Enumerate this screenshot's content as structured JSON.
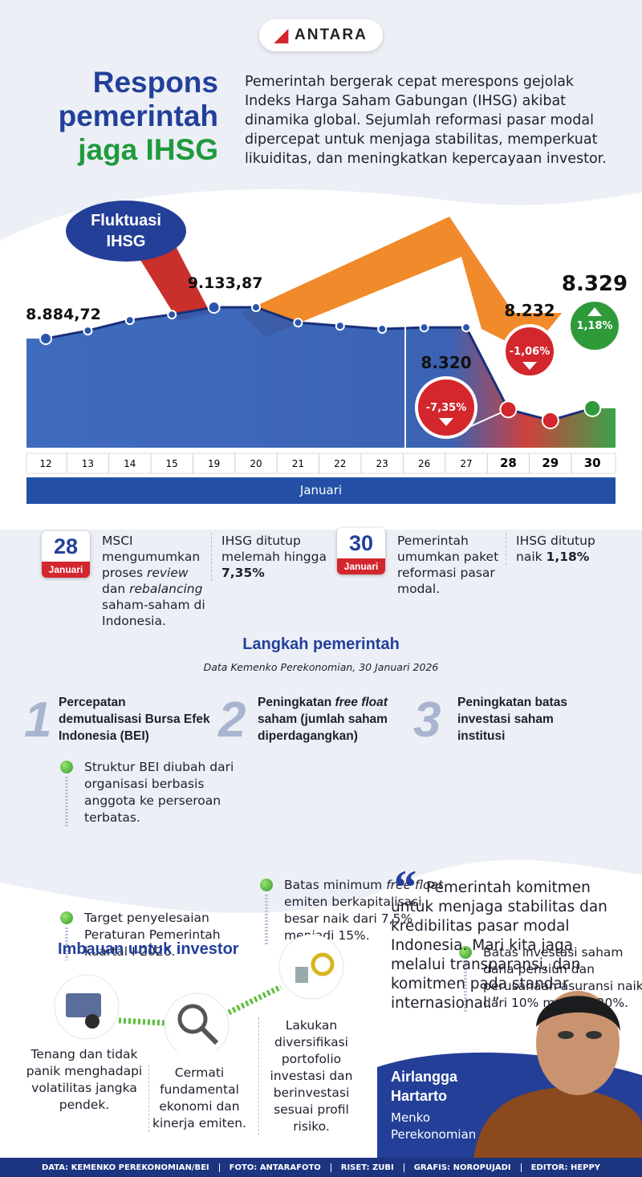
{
  "header": {
    "logo": "ANTARA",
    "title": [
      "Respons",
      "pemerintah",
      "jaga IHSG"
    ],
    "intro": "Pemerintah bergerak cepat merespons gejolak Indeks Harga Saham Gabungan (IHSG) akibat dinamika global. Sejumlah reformasi pasar modal dipercepat untuk menjaga stabilitas, memperkuat likuiditas, dan meningkatkan kepercayaan investor."
  },
  "chart_data": {
    "type": "line",
    "title": "Fluktuasi IHSG",
    "x_label": "Januari",
    "categories": [
      "12",
      "13",
      "14",
      "15",
      "19",
      "20",
      "21",
      "22",
      "23",
      "26",
      "27",
      "28",
      "29",
      "30"
    ],
    "values": [
      8884.72,
      8948,
      9031,
      9076,
      9133.87,
      9134,
      9012,
      8986,
      8961,
      8973,
      8973,
      8320,
      8232,
      8329
    ],
    "value_labels": [
      "8.884,72",
      null,
      null,
      null,
      "9.133,87",
      null,
      null,
      null,
      null,
      null,
      null,
      "8.320",
      "8.232",
      "8.329"
    ],
    "changes": [
      null,
      null,
      null,
      null,
      null,
      null,
      null,
      null,
      null,
      null,
      null,
      -7.35,
      -1.06,
      1.18
    ],
    "change_labels": [
      null,
      null,
      null,
      null,
      null,
      null,
      null,
      null,
      null,
      null,
      null,
      "-7,35%",
      "-1,06%",
      "1,18%"
    ],
    "color": "#2a55ad",
    "down_color": "#d3262d",
    "up_color": "#2f9a3a"
  },
  "events": [
    {
      "day": "28",
      "month": "Januari",
      "text": [
        "MSCI mengumumkan proses ",
        "review",
        " dan ",
        "rebalancing",
        " saham-saham di Indonesia."
      ],
      "result": [
        "IHSG ditutup melemah hingga ",
        "7,35%"
      ]
    },
    {
      "day": "30",
      "month": "Januari",
      "text": [
        "Pemerintah umumkan paket reformasi pasar modal."
      ],
      "result": [
        "IHSG ditutup naik ",
        "1,18%"
      ]
    }
  ],
  "steps": {
    "title": "Langkah pemerintah",
    "source": "Data Kemenko Perekonomian, 30 Januari 2026",
    "items": [
      {
        "number": "1",
        "title": [
          "Percepatan demutualisasi Bursa Efek Indonesia (BEI)"
        ],
        "bullets": [
          [
            "Struktur BEI diubah dari organisasi berbasis anggota ke perseroan terbatas."
          ],
          [
            "Target penyelesaian Peraturan Pemerintah kuartal I-2026."
          ]
        ]
      },
      {
        "number": "2",
        "title": [
          "Peningkatan ",
          "free float",
          " saham (jumlah saham diperdagangkan)"
        ],
        "bullets": [
          [
            "Batas minimum ",
            "free float",
            " emiten berkapitalisasi besar naik dari 7,5% menjadi 15%."
          ]
        ]
      },
      {
        "number": "3",
        "title": [
          "Peningkatan batas investasi saham institusi"
        ],
        "bullets": [
          [
            "Batas investasi saham dana pensiun dan perusahaan asuransi naik dari 10% menjadi 20%."
          ]
        ]
      }
    ]
  },
  "quote": {
    "text": "Pemerintah komitmen untuk menjaga stabilitas dan kredibilitas pasar modal Indonesia. Mari kita jaga melalui transparansi, dan komitmen pada standar internasional.”",
    "name": "Airlangga Hartarto",
    "role": "Menko Perekonomian"
  },
  "tips": {
    "title": "Imbauan untuk investor",
    "items": [
      "Tenang dan tidak panik menghadapi volatilitas jangka pendek.",
      "Cermati fundamental ekonomi dan kinerja emiten.",
      "Lakukan diversifikasi portofolio investasi dan berinvestasi sesuai profil risiko."
    ]
  },
  "credits": [
    "DATA: KEMENKO PEREKONOMIAN/BEI",
    "FOTO: ANTARAFOTO",
    "RISET: ZUBI",
    "GRAFIS: NOROPUJADI",
    "EDITOR: HEPPY"
  ]
}
